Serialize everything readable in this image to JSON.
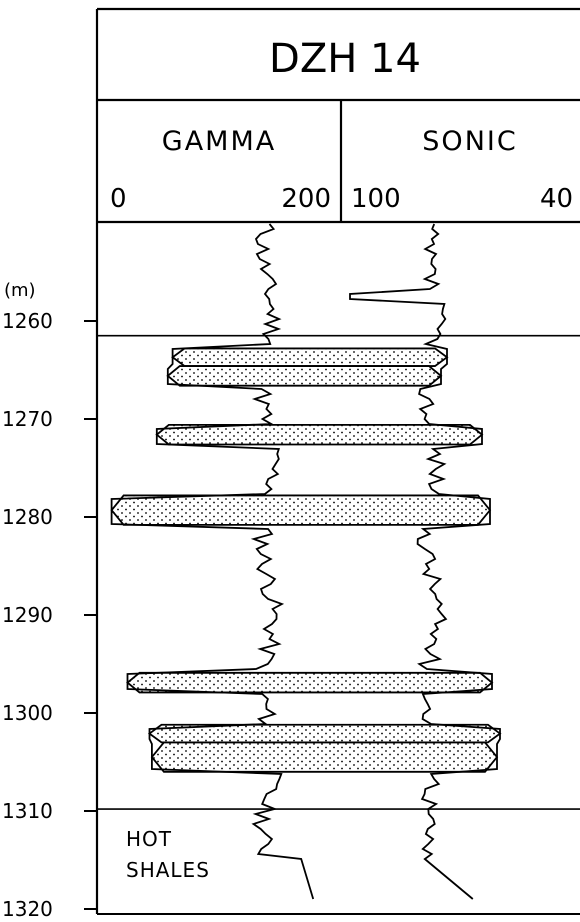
{
  "chart_data": {
    "type": "well-log",
    "title": "DZH 14",
    "depth_unit": "(m)",
    "depth_range": [
      1250,
      1320
    ],
    "depth_ticks": [
      1260,
      1270,
      1280,
      1290,
      1300,
      1310,
      1320
    ],
    "tracks": [
      {
        "name": "GAMMA",
        "scale_left": "0",
        "scale_right": "200"
      },
      {
        "name": "SONIC",
        "scale_left": "100",
        "scale_right": "40"
      }
    ],
    "horizons": [
      1261.5,
      1309.8
    ],
    "annotation": {
      "line1": "HOT",
      "line2": "SHALES"
    },
    "sand_beds": [
      {
        "top": 1262.8,
        "base": 1264.6,
        "gamma_min": 62,
        "sonic_max": 447
      },
      {
        "top": 1264.6,
        "base": 1266.6,
        "gamma_min": 58,
        "sonic_max": 441
      },
      {
        "top": 1270.6,
        "base": 1272.6,
        "gamma_min": 49,
        "sonic_max": 482
      },
      {
        "top": 1277.8,
        "base": 1280.8,
        "gamma_min": 12,
        "sonic_max": 490
      },
      {
        "top": 1295.9,
        "base": 1297.9,
        "gamma_min": 25,
        "sonic_max": 492
      },
      {
        "top": 1301.2,
        "base": 1303.0,
        "gamma_min": 43,
        "sonic_max": 500
      },
      {
        "top": 1303.0,
        "base": 1306.0,
        "gamma_min": 45,
        "sonic_max": 497
      }
    ]
  }
}
